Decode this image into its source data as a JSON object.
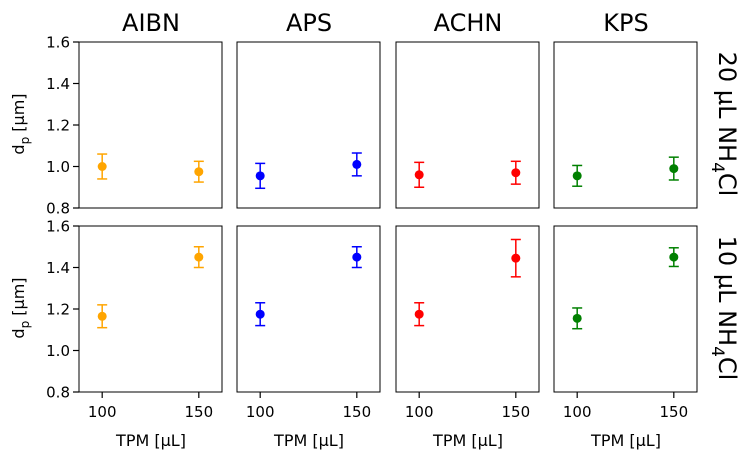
{
  "figure": {
    "column_titles": [
      "AIBN",
      "APS",
      "ACHN",
      "KPS"
    ],
    "row_titles": [
      {
        "prefix": "20 µL NH",
        "sub": "4",
        "suffix": "Cl"
      },
      {
        "prefix": "10 µL NH",
        "sub": "4",
        "suffix": "Cl"
      }
    ],
    "ylabel": {
      "main": "d",
      "sub": "p",
      "unit": " [µm]"
    },
    "xlabel": "TPM [µL]",
    "colors": {
      "AIBN": "#ffa500",
      "APS": "#0000ff",
      "ACHN": "#ff0000",
      "KPS": "#008000"
    }
  },
  "chart_data": [
    {
      "type": "scatter",
      "row": 0,
      "col": 0,
      "title": "AIBN",
      "color": "#ffa500",
      "x": [
        100,
        150
      ],
      "y": [
        1.0,
        0.975
      ],
      "yerr": [
        0.06,
        0.05
      ],
      "xlim": [
        88,
        162
      ],
      "ylim": [
        0.8,
        1.6
      ],
      "xticks": [
        100,
        150
      ],
      "yticks": [
        0.8,
        1.0,
        1.2,
        1.4,
        1.6
      ]
    },
    {
      "type": "scatter",
      "row": 0,
      "col": 1,
      "title": "APS",
      "color": "#0000ff",
      "x": [
        100,
        150
      ],
      "y": [
        0.955,
        1.01
      ],
      "yerr": [
        0.06,
        0.055
      ],
      "xlim": [
        88,
        162
      ],
      "ylim": [
        0.8,
        1.6
      ]
    },
    {
      "type": "scatter",
      "row": 0,
      "col": 2,
      "title": "ACHN",
      "color": "#ff0000",
      "x": [
        100,
        150
      ],
      "y": [
        0.96,
        0.97
      ],
      "yerr": [
        0.06,
        0.055
      ],
      "xlim": [
        88,
        162
      ],
      "ylim": [
        0.8,
        1.6
      ]
    },
    {
      "type": "scatter",
      "row": 0,
      "col": 3,
      "title": "KPS",
      "color": "#008000",
      "x": [
        100,
        150
      ],
      "y": [
        0.955,
        0.99
      ],
      "yerr": [
        0.05,
        0.055
      ],
      "xlim": [
        88,
        162
      ],
      "ylim": [
        0.8,
        1.6
      ]
    },
    {
      "type": "scatter",
      "row": 1,
      "col": 0,
      "title": "AIBN",
      "color": "#ffa500",
      "x": [
        100,
        150
      ],
      "y": [
        1.165,
        1.45
      ],
      "yerr": [
        0.055,
        0.05
      ],
      "xlim": [
        88,
        162
      ],
      "ylim": [
        0.8,
        1.6
      ]
    },
    {
      "type": "scatter",
      "row": 1,
      "col": 1,
      "title": "APS",
      "color": "#0000ff",
      "x": [
        100,
        150
      ],
      "y": [
        1.175,
        1.45
      ],
      "yerr": [
        0.055,
        0.05
      ],
      "xlim": [
        88,
        162
      ],
      "ylim": [
        0.8,
        1.6
      ]
    },
    {
      "type": "scatter",
      "row": 1,
      "col": 2,
      "title": "ACHN",
      "color": "#ff0000",
      "x": [
        100,
        150
      ],
      "y": [
        1.175,
        1.445
      ],
      "yerr": [
        0.055,
        0.09
      ],
      "xlim": [
        88,
        162
      ],
      "ylim": [
        0.8,
        1.6
      ]
    },
    {
      "type": "scatter",
      "row": 1,
      "col": 3,
      "title": "KPS",
      "color": "#008000",
      "x": [
        100,
        150
      ],
      "y": [
        1.155,
        1.45
      ],
      "yerr": [
        0.05,
        0.045
      ],
      "xlim": [
        88,
        162
      ],
      "ylim": [
        0.8,
        1.6
      ]
    }
  ]
}
